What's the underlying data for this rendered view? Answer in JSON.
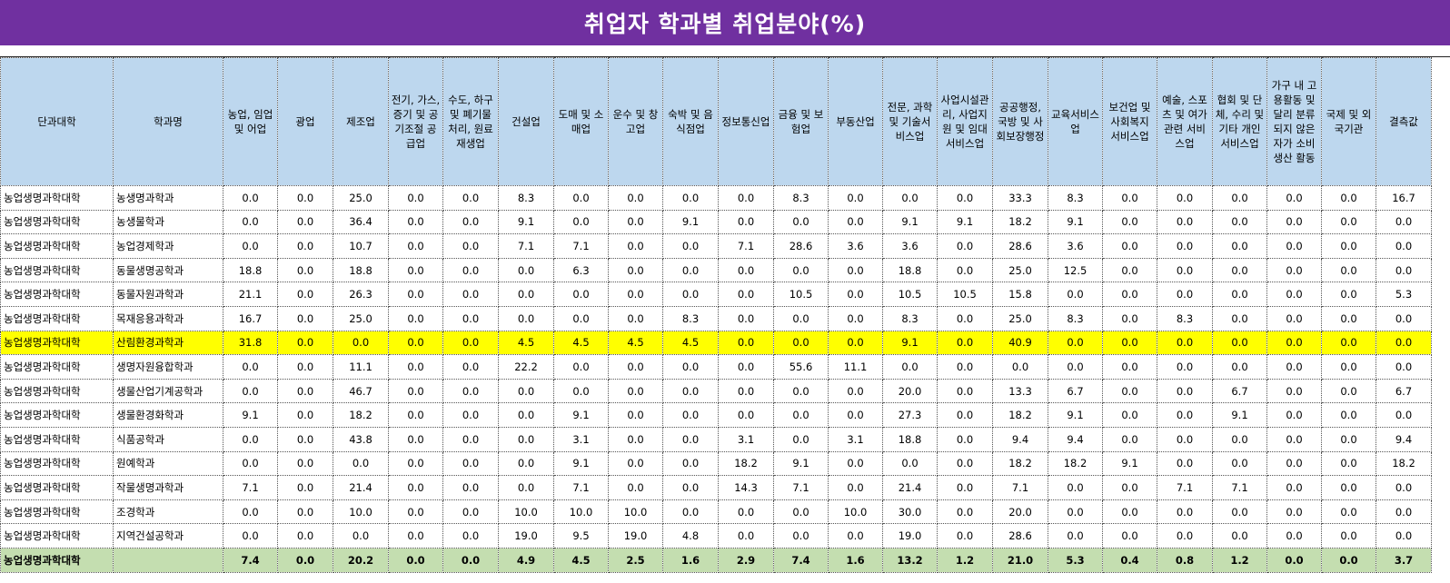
{
  "title": "취업자 학과별 취업분야(%)",
  "headers": [
    "단과대학",
    "학과명",
    "농업, 임업 및 어업",
    "광업",
    "제조업",
    "전기, 가스, 증기 및 공기조절 공급업",
    "수도, 하구 및 폐기물 처리, 원료재생업",
    "건설업",
    "도매 및 소매업",
    "운수 및 창고업",
    "숙박 및 음식점업",
    "정보통신업",
    "금융 및 보험업",
    "부동산업",
    "전문, 과학 및 기술서비스업",
    "사업시설관리, 사업지원 및 임대서비스업",
    "공공행정, 국방 및 사회보장행정",
    "교육서비스업",
    "보건업 및 사회복지 서비스업",
    "예술, 스포츠 및 여가 관련 서비스업",
    "협회 및 단체, 수리 및 기타 개인서비스업",
    "가구 내 고용활동 및 달리 분류되지 않은 자가 소비 생산 활동",
    "국제 및 외국기관",
    "결측값"
  ],
  "rows": [
    {
      "college": "농업생명과학대학",
      "dept": "농생명과학과",
      "values": [
        "0.0",
        "0.0",
        "25.0",
        "0.0",
        "0.0",
        "8.3",
        "0.0",
        "0.0",
        "0.0",
        "0.0",
        "8.3",
        "0.0",
        "0.0",
        "0.0",
        "33.3",
        "8.3",
        "0.0",
        "0.0",
        "0.0",
        "0.0",
        "0.0",
        "16.7"
      ]
    },
    {
      "college": "농업생명과학대학",
      "dept": "농생물학과",
      "values": [
        "0.0",
        "0.0",
        "36.4",
        "0.0",
        "0.0",
        "9.1",
        "0.0",
        "0.0",
        "9.1",
        "0.0",
        "0.0",
        "0.0",
        "9.1",
        "9.1",
        "18.2",
        "9.1",
        "0.0",
        "0.0",
        "0.0",
        "0.0",
        "0.0",
        "0.0"
      ]
    },
    {
      "college": "농업생명과학대학",
      "dept": "농업경제학과",
      "values": [
        "0.0",
        "0.0",
        "10.7",
        "0.0",
        "0.0",
        "7.1",
        "7.1",
        "0.0",
        "0.0",
        "7.1",
        "28.6",
        "3.6",
        "3.6",
        "0.0",
        "28.6",
        "3.6",
        "0.0",
        "0.0",
        "0.0",
        "0.0",
        "0.0",
        "0.0"
      ]
    },
    {
      "college": "농업생명과학대학",
      "dept": "동물생명공학과",
      "values": [
        "18.8",
        "0.0",
        "18.8",
        "0.0",
        "0.0",
        "0.0",
        "6.3",
        "0.0",
        "0.0",
        "0.0",
        "0.0",
        "0.0",
        "18.8",
        "0.0",
        "25.0",
        "12.5",
        "0.0",
        "0.0",
        "0.0",
        "0.0",
        "0.0",
        "0.0"
      ]
    },
    {
      "college": "농업생명과학대학",
      "dept": "동물자원과학과",
      "values": [
        "21.1",
        "0.0",
        "26.3",
        "0.0",
        "0.0",
        "0.0",
        "0.0",
        "0.0",
        "0.0",
        "0.0",
        "10.5",
        "0.0",
        "10.5",
        "10.5",
        "15.8",
        "0.0",
        "0.0",
        "0.0",
        "0.0",
        "0.0",
        "0.0",
        "5.3"
      ]
    },
    {
      "college": "농업생명과학대학",
      "dept": "목재응용과학과",
      "values": [
        "16.7",
        "0.0",
        "25.0",
        "0.0",
        "0.0",
        "0.0",
        "0.0",
        "0.0",
        "8.3",
        "0.0",
        "0.0",
        "0.0",
        "8.3",
        "0.0",
        "25.0",
        "8.3",
        "0.0",
        "8.3",
        "0.0",
        "0.0",
        "0.0",
        "0.0"
      ]
    },
    {
      "college": "농업생명과학대학",
      "dept": "산림환경과학과",
      "highlight": true,
      "values": [
        "31.8",
        "0.0",
        "0.0",
        "0.0",
        "0.0",
        "4.5",
        "4.5",
        "4.5",
        "4.5",
        "0.0",
        "0.0",
        "0.0",
        "9.1",
        "0.0",
        "40.9",
        "0.0",
        "0.0",
        "0.0",
        "0.0",
        "0.0",
        "0.0",
        "0.0"
      ]
    },
    {
      "college": "농업생명과학대학",
      "dept": "생명자원융합학과",
      "values": [
        "0.0",
        "0.0",
        "11.1",
        "0.0",
        "0.0",
        "22.2",
        "0.0",
        "0.0",
        "0.0",
        "0.0",
        "55.6",
        "11.1",
        "0.0",
        "0.0",
        "0.0",
        "0.0",
        "0.0",
        "0.0",
        "0.0",
        "0.0",
        "0.0",
        "0.0"
      ]
    },
    {
      "college": "농업생명과학대학",
      "dept": "생물산업기계공학과",
      "values": [
        "0.0",
        "0.0",
        "46.7",
        "0.0",
        "0.0",
        "0.0",
        "0.0",
        "0.0",
        "0.0",
        "0.0",
        "0.0",
        "0.0",
        "20.0",
        "0.0",
        "13.3",
        "6.7",
        "0.0",
        "0.0",
        "6.7",
        "0.0",
        "0.0",
        "6.7"
      ]
    },
    {
      "college": "농업생명과학대학",
      "dept": "생물환경화학과",
      "values": [
        "9.1",
        "0.0",
        "18.2",
        "0.0",
        "0.0",
        "0.0",
        "9.1",
        "0.0",
        "0.0",
        "0.0",
        "0.0",
        "0.0",
        "27.3",
        "0.0",
        "18.2",
        "9.1",
        "0.0",
        "0.0",
        "9.1",
        "0.0",
        "0.0",
        "0.0"
      ]
    },
    {
      "college": "농업생명과학대학",
      "dept": "식품공학과",
      "values": [
        "0.0",
        "0.0",
        "43.8",
        "0.0",
        "0.0",
        "0.0",
        "3.1",
        "0.0",
        "0.0",
        "3.1",
        "0.0",
        "3.1",
        "18.8",
        "0.0",
        "9.4",
        "9.4",
        "0.0",
        "0.0",
        "0.0",
        "0.0",
        "0.0",
        "9.4"
      ]
    },
    {
      "college": "농업생명과학대학",
      "dept": "원예학과",
      "values": [
        "0.0",
        "0.0",
        "0.0",
        "0.0",
        "0.0",
        "0.0",
        "9.1",
        "0.0",
        "0.0",
        "18.2",
        "9.1",
        "0.0",
        "0.0",
        "0.0",
        "18.2",
        "18.2",
        "9.1",
        "0.0",
        "0.0",
        "0.0",
        "0.0",
        "18.2"
      ]
    },
    {
      "college": "농업생명과학대학",
      "dept": "작물생명과학과",
      "values": [
        "7.1",
        "0.0",
        "21.4",
        "0.0",
        "0.0",
        "0.0",
        "7.1",
        "0.0",
        "0.0",
        "14.3",
        "7.1",
        "0.0",
        "21.4",
        "0.0",
        "7.1",
        "0.0",
        "0.0",
        "7.1",
        "7.1",
        "0.0",
        "0.0",
        "0.0"
      ]
    },
    {
      "college": "농업생명과학대학",
      "dept": "조경학과",
      "values": [
        "0.0",
        "0.0",
        "10.0",
        "0.0",
        "0.0",
        "10.0",
        "10.0",
        "10.0",
        "0.0",
        "0.0",
        "0.0",
        "10.0",
        "30.0",
        "0.0",
        "20.0",
        "0.0",
        "0.0",
        "0.0",
        "0.0",
        "0.0",
        "0.0",
        "0.0"
      ]
    },
    {
      "college": "농업생명과학대학",
      "dept": "지역건설공학과",
      "values": [
        "0.0",
        "0.0",
        "0.0",
        "0.0",
        "0.0",
        "19.0",
        "9.5",
        "19.0",
        "4.8",
        "0.0",
        "0.0",
        "0.0",
        "19.0",
        "0.0",
        "28.6",
        "0.0",
        "0.0",
        "0.0",
        "0.0",
        "0.0",
        "0.0",
        "0.0"
      ]
    }
  ],
  "total": {
    "college": "농업생명과학대학",
    "dept": "",
    "values": [
      "7.4",
      "0.0",
      "20.2",
      "0.0",
      "0.0",
      "4.9",
      "4.5",
      "2.5",
      "1.6",
      "2.9",
      "7.4",
      "1.6",
      "13.2",
      "1.2",
      "21.0",
      "5.3",
      "0.4",
      "0.8",
      "1.2",
      "0.0",
      "0.0",
      "3.7"
    ]
  },
  "colors": {
    "title_bg": "#7030a0",
    "header_bg": "#bdd7ee",
    "highlight": "#ffff00",
    "total_bg": "#c4deb0"
  }
}
